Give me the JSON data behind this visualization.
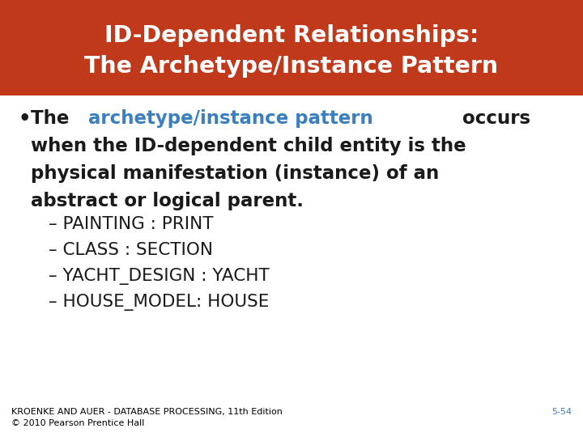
{
  "title_line1": "ID-Dependent Relationships:",
  "title_line2": "The Archetype/Instance Pattern",
  "title_bg_color": "#C0391B",
  "title_text_color": "#FFFFFF",
  "bg_color": "#FFFFFF",
  "bullet_before": "The ",
  "bullet_highlight": "archetype/instance pattern",
  "bullet_highlight_color": "#3A7FC1",
  "bullet_after": " occurs",
  "bullet_lines": [
    "when the ID-dependent child entity is the",
    "physical manifestation (instance) of an",
    "abstract or logical parent."
  ],
  "bullet_text_color": "#1A1A1A",
  "sub_bullets": [
    "– PAINTING : PRINT",
    "– CLASS : SECTION",
    "– YACHT_DESIGN : YACHT",
    "– HOUSE_MODEL: HOUSE"
  ],
  "footer_left_line1": "KROENKE AND AUER - DATABASE PROCESSING, 11th Edition",
  "footer_left_line2": "© 2010 Pearson Prentice Hall",
  "footer_right": "5-54",
  "footer_right_color": "#3A7FC1",
  "footer_color": "#000000",
  "footer_fontsize": 8.0,
  "title_fontsize": 20.5,
  "body_fontsize": 16.5,
  "sub_fontsize": 15.5
}
